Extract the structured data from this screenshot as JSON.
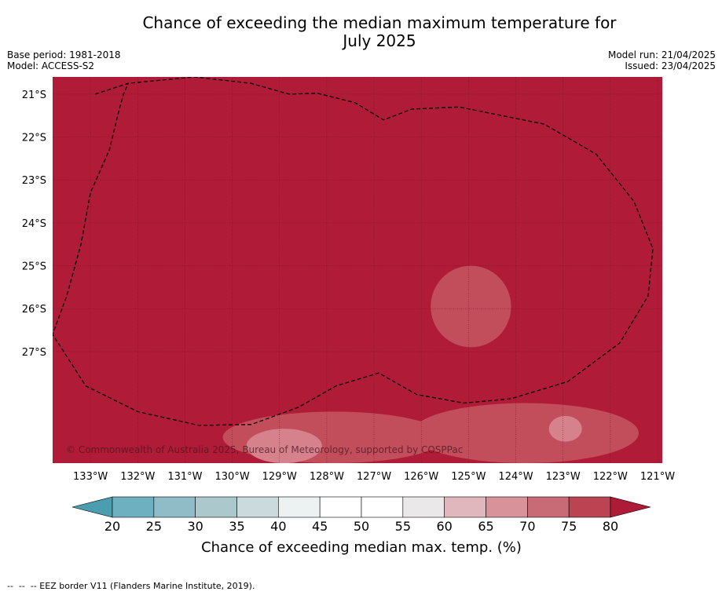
{
  "title_line1": "Chance of exceeding the median maximum temperature for",
  "title_line2": "July 2025",
  "meta": {
    "base_period": "Base period: 1981-2018",
    "model": "Model: ACCESS-S2",
    "model_run": "Model run: 21/04/2025",
    "issued": "Issued: 23/04/2025"
  },
  "copyright": "© Commonwealth of Australia 2025, Bureau of Meteorology, supported by COSPPac",
  "footnote": "--  --  -- EEZ border V11 (Flanders Marine Institute, 2019).",
  "colors": {
    "background_fill": "#b01c37",
    "level_75": "#c24e5c",
    "level_70": "#d5828d",
    "grid": "#6a1020",
    "eez_border": "#000000"
  },
  "chart_data": {
    "type": "heatmap",
    "title": "Chance of exceeding the median maximum temperature for July 2025",
    "xlabel": "",
    "ylabel": "",
    "xlim": [
      -133.8,
      -120.9
    ],
    "ylim": [
      -29.6,
      -20.6
    ],
    "x_ticks": [
      -133,
      -132,
      -131,
      -130,
      -129,
      -128,
      -127,
      -126,
      -125,
      -124,
      -123,
      -122,
      -121
    ],
    "x_tick_labels": [
      "133°W",
      "132°W",
      "131°W",
      "130°W",
      "129°W",
      "128°W",
      "127°W",
      "126°W",
      "125°W",
      "124°W",
      "123°W",
      "122°W",
      "121°W"
    ],
    "y_ticks": [
      -21,
      -22,
      -23,
      -24,
      -25,
      -26,
      -27
    ],
    "y_tick_labels": [
      "21°S",
      "22°S",
      "23°S",
      "24°S",
      "25°S",
      "26°S",
      "27°S"
    ],
    "grid": true,
    "dominant_value": ">80",
    "regions": [
      {
        "category": "75-80",
        "lon": [
          -125.8,
          -124.1
        ],
        "lat": [
          -25.0,
          -26.9
        ]
      },
      {
        "category": "75-80",
        "lon": [
          -130.2,
          -125.5
        ],
        "lat": [
          -28.4,
          -29.6
        ]
      },
      {
        "category": "75-80",
        "lon": [
          -126.2,
          -121.4
        ],
        "lat": [
          -28.2,
          -29.6
        ]
      },
      {
        "category": "70-75",
        "lon": [
          -129.7,
          -128.1
        ],
        "lat": [
          -28.8,
          -29.6
        ]
      },
      {
        "category": "70-75",
        "lon": [
          -123.3,
          -122.6
        ],
        "lat": [
          -28.5,
          -29.1
        ]
      }
    ],
    "colorbar": {
      "label": "Chance of exceeding median max. temp. (%)",
      "ticks": [
        20,
        25,
        30,
        35,
        40,
        45,
        50,
        55,
        60,
        65,
        70,
        75,
        80
      ],
      "tick_labels": [
        "20",
        "25",
        "30",
        "35",
        "40",
        "45",
        "50",
        "55",
        "60",
        "65",
        "70",
        "75",
        "80"
      ],
      "extend": "both",
      "colors": [
        "#4a9eaf",
        "#6eb0bf",
        "#8fbcc7",
        "#abc8cd",
        "#cbdadd",
        "#ecf1f2",
        "#ffffff",
        "#ffffff",
        "#ebe8e9",
        "#e0b7bd",
        "#d7929a",
        "#c86b76",
        "#bc4452",
        "#ad1b36"
      ]
    },
    "eez_border": [
      [
        -132.9,
        -21.0
      ],
      [
        -132.2,
        -20.75
      ],
      [
        -130.8,
        -20.6
      ],
      [
        -129.6,
        -20.75
      ],
      [
        -128.8,
        -21.0
      ],
      [
        -128.2,
        -20.98
      ],
      [
        -127.4,
        -21.2
      ],
      [
        -126.8,
        -21.6
      ],
      [
        -126.2,
        -21.35
      ],
      [
        -125.2,
        -21.3
      ],
      [
        -123.4,
        -21.7
      ],
      [
        -122.3,
        -22.4
      ],
      [
        -121.5,
        -23.5
      ],
      [
        -121.1,
        -24.6
      ],
      [
        -121.2,
        -25.7
      ],
      [
        -121.8,
        -26.8
      ],
      [
        -122.9,
        -27.7
      ],
      [
        -124.1,
        -28.1
      ],
      [
        -125.1,
        -28.2
      ],
      [
        -126.1,
        -28.0
      ],
      [
        -126.9,
        -27.5
      ],
      [
        -127.8,
        -27.8
      ],
      [
        -128.6,
        -28.3
      ],
      [
        -129.6,
        -28.7
      ],
      [
        -130.7,
        -28.72
      ],
      [
        -132.0,
        -28.4
      ],
      [
        -133.1,
        -27.8
      ],
      [
        -133.8,
        -26.6
      ],
      [
        -133.5,
        -25.7
      ],
      [
        -133.2,
        -24.5
      ],
      [
        -133.0,
        -23.3
      ],
      [
        -132.6,
        -22.3
      ],
      [
        -132.4,
        -21.4
      ],
      [
        -132.3,
        -21.0
      ],
      [
        -132.2,
        -20.75
      ]
    ]
  }
}
